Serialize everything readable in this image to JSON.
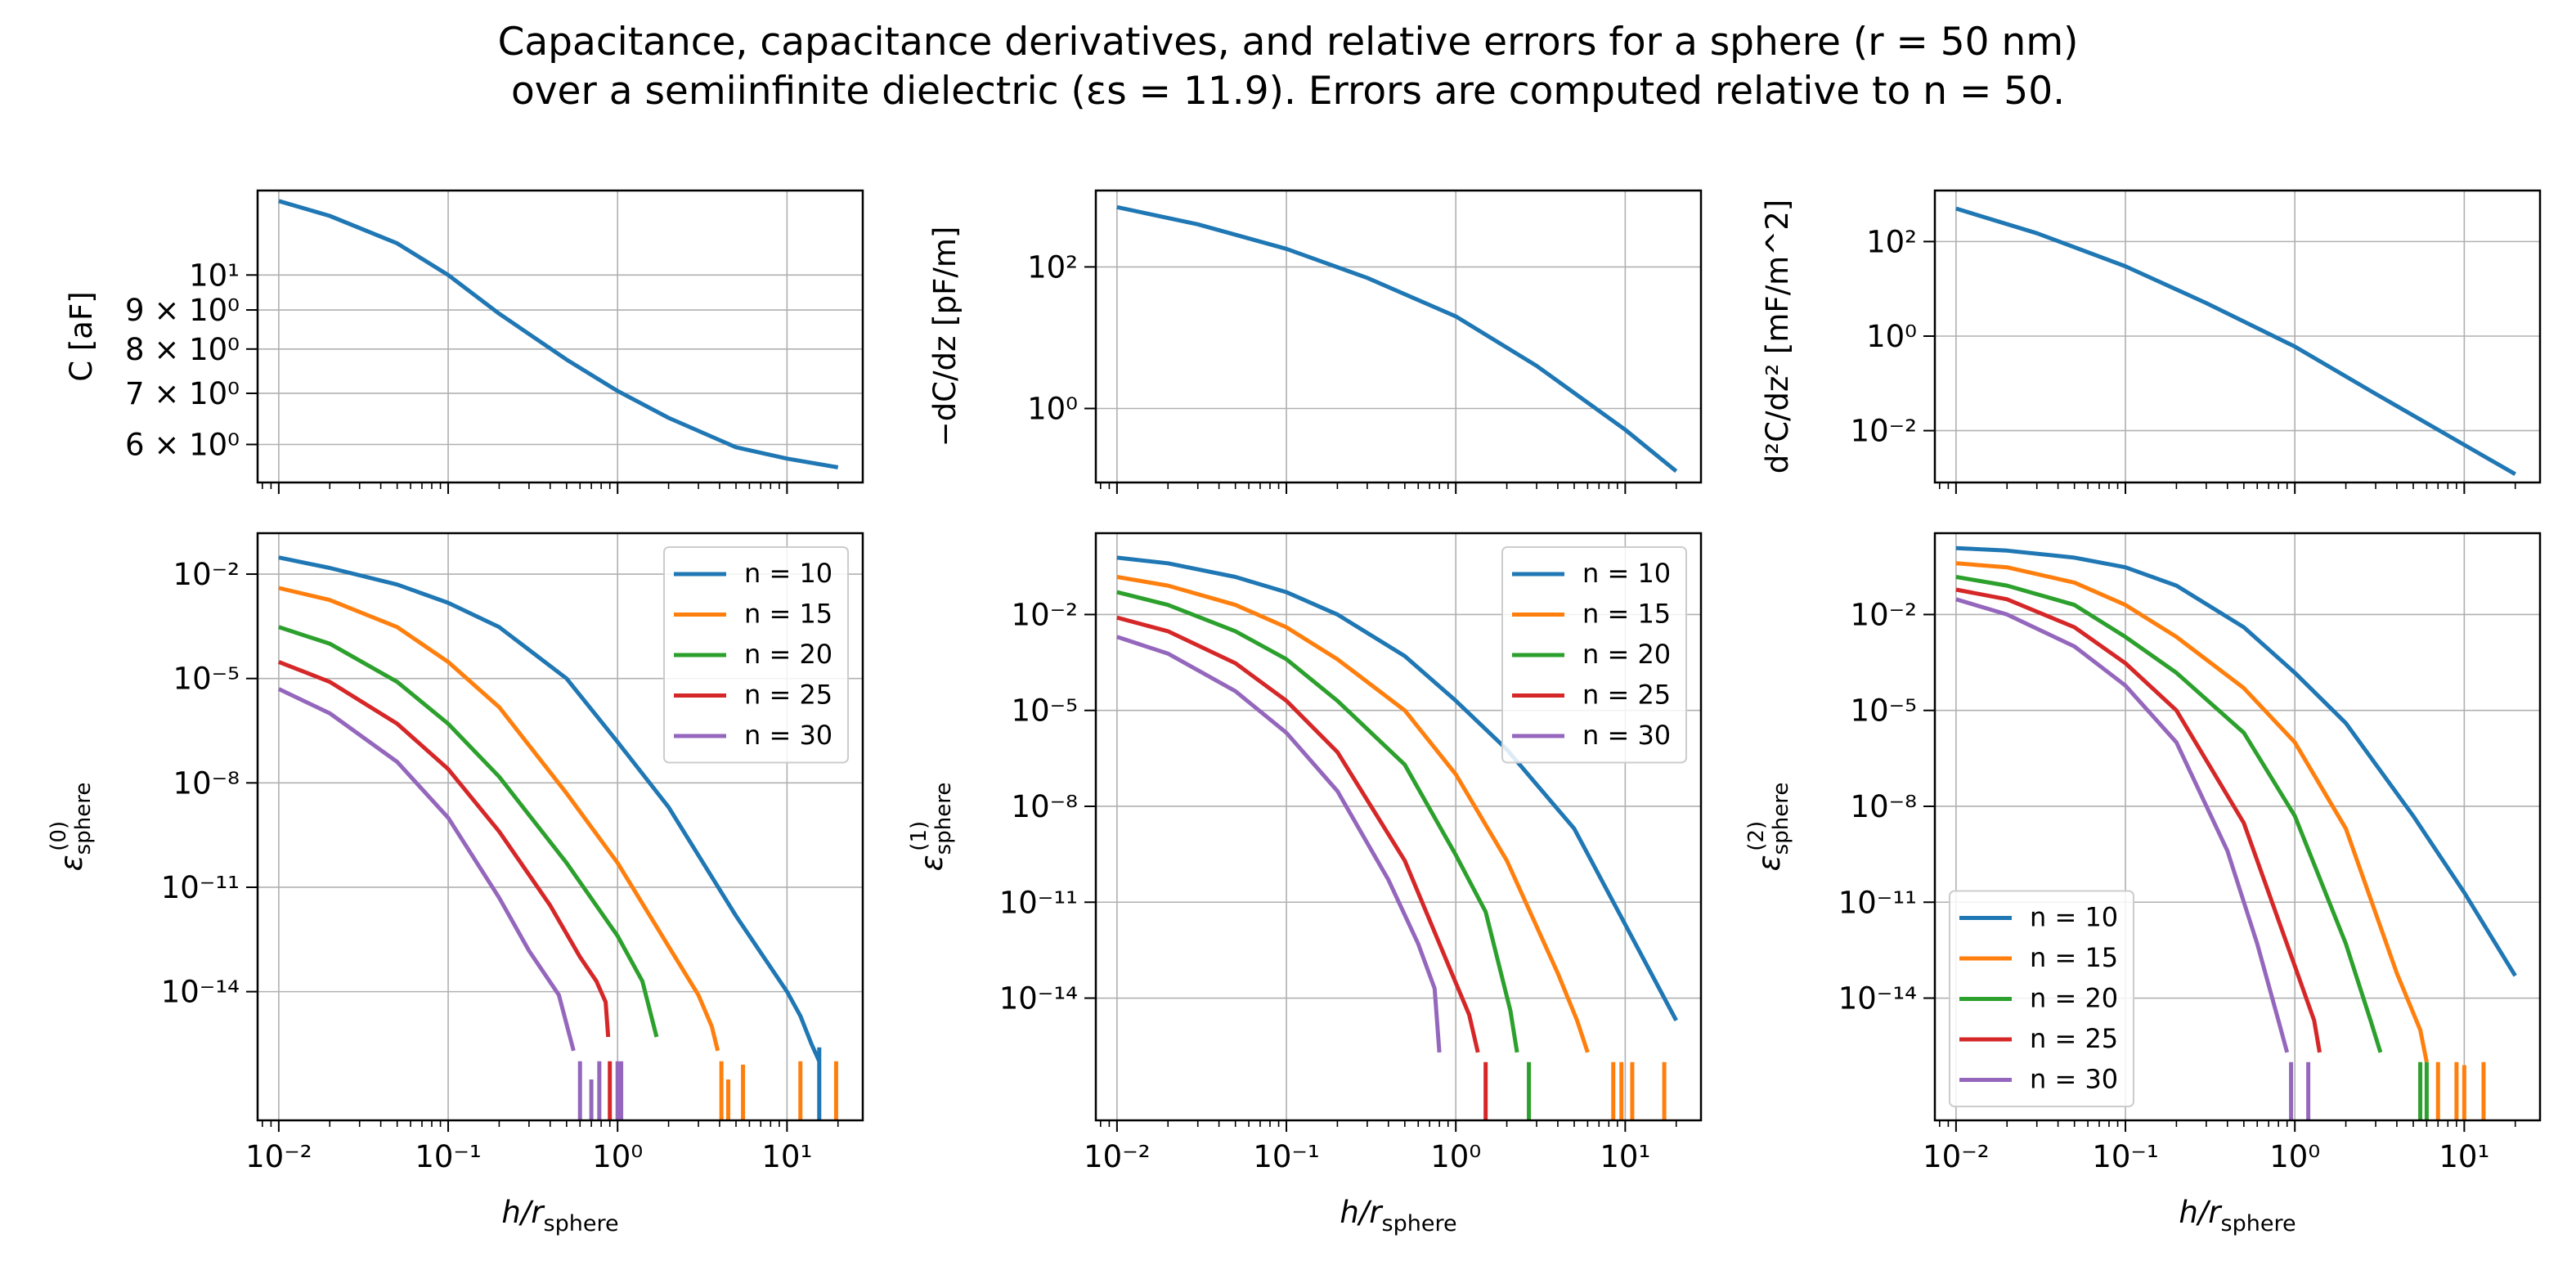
{
  "title": {
    "line1": "Capacitance, capacitance derivatives, and relative errors for a sphere (r = 50 nm)",
    "line2": "over a semiinfinite dielectric (εs = 11.9). Errors are computed relative to n = 50."
  },
  "colors": {
    "n=10": "#1f77b4",
    "n=15": "#ff7f0e",
    "n=20": "#2ca02c",
    "n=25": "#d62728",
    "n=30": "#9467bd"
  },
  "chart_data": [
    {
      "id": "C",
      "type": "line",
      "xscale": "log",
      "yscale": "log",
      "xlim": [
        0.0075,
        28
      ],
      "ylim": [
        5.35,
        12.9
      ],
      "grid": true,
      "xlabel": "",
      "ylabel": "C [aF]",
      "yticks": [
        {
          "v": 10,
          "label": "10¹"
        },
        {
          "v": 9,
          "label": "9 × 10⁰"
        },
        {
          "v": 8,
          "label": "8 × 10⁰"
        },
        {
          "v": 7,
          "label": "7 × 10⁰"
        },
        {
          "v": 6,
          "label": "6 × 10⁰"
        }
      ],
      "xticks": [],
      "series": [
        {
          "color": "#1f77b4",
          "x": [
            0.01,
            0.02,
            0.05,
            0.1,
            0.2,
            0.5,
            1,
            2,
            5,
            10,
            20
          ],
          "y": [
            12.5,
            11.95,
            11.0,
            10.0,
            8.9,
            7.75,
            7.05,
            6.5,
            5.95,
            5.75,
            5.6
          ]
        }
      ]
    },
    {
      "id": "dC",
      "type": "line",
      "xscale": "log",
      "yscale": "log",
      "xlim": [
        0.0075,
        28
      ],
      "ylim": [
        0.09,
        1200
      ],
      "grid": true,
      "xlabel": "",
      "ylabel": "−dC/dz [pF/m]",
      "yticks": [
        {
          "v": 100,
          "label": "10²"
        },
        {
          "v": 1,
          "label": "10⁰"
        }
      ],
      "xticks": [],
      "series": [
        {
          "color": "#1f77b4",
          "x": [
            0.01,
            0.03,
            0.1,
            0.3,
            1,
            3,
            10,
            20
          ],
          "y": [
            700,
            400,
            180,
            70,
            20,
            4.0,
            0.5,
            0.13
          ]
        }
      ]
    },
    {
      "id": "d2C",
      "type": "line",
      "xscale": "log",
      "yscale": "log",
      "xlim": [
        0.0075,
        28
      ],
      "ylim": [
        0.0008,
        1200
      ],
      "grid": true,
      "xlabel": "",
      "ylabel": "d²C/dz² [mF/m^2]",
      "yticks": [
        {
          "v": 100,
          "label": "10²"
        },
        {
          "v": 1,
          "label": "10⁰"
        },
        {
          "v": 0.01,
          "label": "10⁻²"
        }
      ],
      "xticks": [],
      "series": [
        {
          "color": "#1f77b4",
          "x": [
            0.01,
            0.03,
            0.1,
            0.3,
            1,
            3,
            10,
            20
          ],
          "y": [
            500,
            150,
            30,
            5,
            0.6,
            0.06,
            0.005,
            0.0012
          ]
        }
      ]
    },
    {
      "id": "e0",
      "type": "line",
      "xscale": "log",
      "yscale": "log",
      "xlim": [
        0.0075,
        28
      ],
      "ylim": [
        2e-18,
        0.15
      ],
      "grid": true,
      "xlabel": "h/r_sphere",
      "ylabel": "ε_sphere^(0)",
      "yticks": [
        {
          "v": 0.01,
          "label": "10⁻²"
        },
        {
          "v": 1e-05,
          "label": "10⁻⁵"
        },
        {
          "v": 1e-08,
          "label": "10⁻⁸"
        },
        {
          "v": 1e-11,
          "label": "10⁻¹¹"
        },
        {
          "v": 1e-14,
          "label": "10⁻¹⁴"
        }
      ],
      "xticks": [
        {
          "v": 0.01,
          "label": "10⁻²"
        },
        {
          "v": 0.1,
          "label": "10⁻¹"
        },
        {
          "v": 1,
          "label": "10⁰"
        },
        {
          "v": 10,
          "label": "10¹"
        }
      ],
      "legend": "top-right",
      "series": [
        {
          "name": "n = 10",
          "color": "#1f77b4",
          "x": [
            0.01,
            0.02,
            0.05,
            0.1,
            0.2,
            0.5,
            1,
            2,
            5,
            10,
            12,
            14,
            15.5
          ],
          "y": [
            0.03,
            0.015,
            0.005,
            0.0015,
            0.0003,
            1e-05,
            1.5e-07,
            2e-09,
            1.5e-12,
            1e-14,
            2e-15,
            3e-16,
            1e-16
          ],
          "spikes": [
            [
              15.5,
              2.5e-16
            ]
          ]
        },
        {
          "name": "n = 15",
          "color": "#ff7f0e",
          "x": [
            0.01,
            0.02,
            0.05,
            0.1,
            0.2,
            0.5,
            1,
            2,
            3,
            3.6,
            3.9
          ],
          "y": [
            0.004,
            0.0018,
            0.0003,
            3e-05,
            1.5e-06,
            5e-09,
            5e-11,
            2e-13,
            8e-15,
            1e-15,
            2e-16
          ],
          "spikes": [
            [
              4.1,
              1e-16
            ],
            [
              4.5,
              3e-17
            ],
            [
              5.5,
              8e-17
            ],
            [
              12,
              1e-16
            ],
            [
              19.5,
              1e-16
            ]
          ]
        },
        {
          "name": "n = 20",
          "color": "#2ca02c",
          "x": [
            0.01,
            0.02,
            0.05,
            0.1,
            0.2,
            0.5,
            1,
            1.4,
            1.7
          ],
          "y": [
            0.0003,
            0.0001,
            8e-06,
            5e-07,
            1.5e-08,
            5e-11,
            4e-13,
            2e-14,
            5e-16
          ],
          "spikes": []
        },
        {
          "name": "n = 25",
          "color": "#d62728",
          "x": [
            0.01,
            0.02,
            0.05,
            0.1,
            0.2,
            0.4,
            0.6,
            0.75,
            0.85,
            0.88
          ],
          "y": [
            3e-05,
            8e-06,
            5e-07,
            2.5e-08,
            4e-10,
            3e-12,
            1e-13,
            2e-14,
            5e-15,
            5e-16
          ],
          "spikes": [
            [
              0.9,
              1e-16
            ]
          ]
        },
        {
          "name": "n = 30",
          "color": "#9467bd",
          "x": [
            0.01,
            0.02,
            0.05,
            0.1,
            0.2,
            0.3,
            0.45,
            0.55
          ],
          "y": [
            5e-06,
            1e-06,
            4e-08,
            1e-09,
            5e-12,
            1.5e-13,
            8e-15,
            2e-16
          ],
          "spikes": [
            [
              0.6,
              1e-16
            ],
            [
              0.7,
              3e-17
            ],
            [
              0.78,
              1e-16
            ],
            [
              1.0,
              1e-16
            ],
            [
              1.05,
              1e-16
            ]
          ]
        }
      ]
    },
    {
      "id": "e1",
      "type": "line",
      "xscale": "log",
      "yscale": "log",
      "xlim": [
        0.0075,
        28
      ],
      "ylim": [
        1.5e-18,
        3.5
      ],
      "grid": true,
      "xlabel": "h/r_sphere",
      "ylabel": "ε_sphere^(1)",
      "yticks": [
        {
          "v": 0.01,
          "label": "10⁻²"
        },
        {
          "v": 1e-05,
          "label": "10⁻⁵"
        },
        {
          "v": 1e-08,
          "label": "10⁻⁸"
        },
        {
          "v": 1e-11,
          "label": "10⁻¹¹"
        },
        {
          "v": 1e-14,
          "label": "10⁻¹⁴"
        }
      ],
      "xticks": [
        {
          "v": 0.01,
          "label": "10⁻²"
        },
        {
          "v": 0.1,
          "label": "10⁻¹"
        },
        {
          "v": 1,
          "label": "10⁰"
        },
        {
          "v": 10,
          "label": "10¹"
        }
      ],
      "legend": "top-right",
      "series": [
        {
          "name": "n = 10",
          "color": "#1f77b4",
          "x": [
            0.01,
            0.02,
            0.05,
            0.1,
            0.2,
            0.5,
            1,
            2,
            5,
            10,
            20
          ],
          "y": [
            0.6,
            0.4,
            0.15,
            0.05,
            0.01,
            0.0005,
            2e-05,
            6e-07,
            2e-09,
            2e-12,
            2e-15
          ],
          "spikes": []
        },
        {
          "name": "n = 15",
          "color": "#ff7f0e",
          "x": [
            0.01,
            0.02,
            0.05,
            0.1,
            0.2,
            0.5,
            1,
            2,
            4,
            5.2,
            6
          ],
          "y": [
            0.15,
            0.08,
            0.02,
            0.004,
            0.0004,
            1e-05,
            1e-07,
            2e-10,
            6e-14,
            2e-15,
            2e-16
          ],
          "spikes": [
            [
              8.5,
              1e-16
            ],
            [
              9.5,
              1e-16
            ],
            [
              11,
              1e-16
            ],
            [
              17,
              1e-16
            ]
          ]
        },
        {
          "name": "n = 20",
          "color": "#2ca02c",
          "x": [
            0.01,
            0.02,
            0.05,
            0.1,
            0.2,
            0.5,
            1,
            1.5,
            2.1,
            2.3
          ],
          "y": [
            0.05,
            0.02,
            0.003,
            0.0004,
            2e-05,
            2e-07,
            3e-10,
            5e-12,
            4e-15,
            2e-16
          ],
          "spikes": [
            [
              2.7,
              1e-16
            ]
          ]
        },
        {
          "name": "n = 25",
          "color": "#d62728",
          "x": [
            0.01,
            0.02,
            0.05,
            0.1,
            0.2,
            0.5,
            1,
            1.2,
            1.35
          ],
          "y": [
            0.008,
            0.003,
            0.0003,
            2e-05,
            5e-07,
            2e-10,
            3e-14,
            3e-15,
            2e-16
          ],
          "spikes": [
            [
              1.5,
              1e-16
            ]
          ]
        },
        {
          "name": "n = 30",
          "color": "#9467bd",
          "x": [
            0.01,
            0.02,
            0.05,
            0.1,
            0.2,
            0.4,
            0.6,
            0.75,
            0.8
          ],
          "y": [
            0.002,
            0.0006,
            4e-05,
            2e-06,
            3e-08,
            5e-11,
            5e-13,
            2e-14,
            2e-16
          ],
          "spikes": []
        }
      ]
    },
    {
      "id": "e2",
      "type": "line",
      "xscale": "log",
      "yscale": "log",
      "xlim": [
        0.0075,
        28
      ],
      "ylim": [
        1.5e-18,
        3.5
      ],
      "grid": true,
      "xlabel": "h/r_sphere",
      "ylabel": "ε_sphere^(2)",
      "yticks": [
        {
          "v": 0.01,
          "label": "10⁻²"
        },
        {
          "v": 1e-05,
          "label": "10⁻⁵"
        },
        {
          "v": 1e-08,
          "label": "10⁻⁸"
        },
        {
          "v": 1e-11,
          "label": "10⁻¹¹"
        },
        {
          "v": 1e-14,
          "label": "10⁻¹⁴"
        }
      ],
      "xticks": [
        {
          "v": 0.01,
          "label": "10⁻²"
        },
        {
          "v": 0.1,
          "label": "10⁻¹"
        },
        {
          "v": 1,
          "label": "10⁰"
        },
        {
          "v": 10,
          "label": "10¹"
        }
      ],
      "legend": "bottom-left",
      "series": [
        {
          "name": "n = 10",
          "color": "#1f77b4",
          "x": [
            0.01,
            0.02,
            0.05,
            0.1,
            0.2,
            0.5,
            1,
            2,
            5,
            10,
            20
          ],
          "y": [
            1.2,
            1.0,
            0.6,
            0.3,
            0.08,
            0.004,
            0.00015,
            4e-06,
            5e-09,
            2e-11,
            5e-14
          ],
          "spikes": []
        },
        {
          "name": "n = 15",
          "color": "#ff7f0e",
          "x": [
            0.01,
            0.02,
            0.05,
            0.1,
            0.2,
            0.5,
            1,
            2,
            4,
            5.5,
            6
          ],
          "y": [
            0.4,
            0.3,
            0.1,
            0.02,
            0.002,
            5e-05,
            1e-06,
            2e-09,
            6e-14,
            1e-15,
            1e-16
          ],
          "spikes": [
            [
              7,
              1e-16
            ],
            [
              9,
              1e-16
            ],
            [
              10,
              8e-17
            ],
            [
              13,
              1e-16
            ]
          ]
        },
        {
          "name": "n = 20",
          "color": "#2ca02c",
          "x": [
            0.01,
            0.02,
            0.05,
            0.1,
            0.2,
            0.5,
            1,
            2,
            2.8,
            3.2
          ],
          "y": [
            0.15,
            0.08,
            0.02,
            0.002,
            0.00015,
            2e-06,
            5e-09,
            5e-13,
            2e-15,
            2e-16
          ],
          "spikes": [
            [
              5.5,
              1e-16
            ],
            [
              6,
              1e-16
            ]
          ]
        },
        {
          "name": "n = 25",
          "color": "#d62728",
          "x": [
            0.01,
            0.02,
            0.05,
            0.1,
            0.2,
            0.5,
            1,
            1.3,
            1.4
          ],
          "y": [
            0.06,
            0.03,
            0.004,
            0.0003,
            1e-05,
            3e-09,
            1e-13,
            2e-15,
            2e-16
          ],
          "spikes": []
        },
        {
          "name": "n = 30",
          "color": "#9467bd",
          "x": [
            0.01,
            0.02,
            0.05,
            0.1,
            0.2,
            0.4,
            0.6,
            0.8,
            0.9
          ],
          "y": [
            0.03,
            0.01,
            0.001,
            6e-05,
            1e-06,
            4e-10,
            5e-13,
            2e-15,
            2e-16
          ],
          "spikes": [
            [
              0.95,
              1e-16
            ],
            [
              1.2,
              1e-16
            ]
          ]
        }
      ]
    }
  ]
}
